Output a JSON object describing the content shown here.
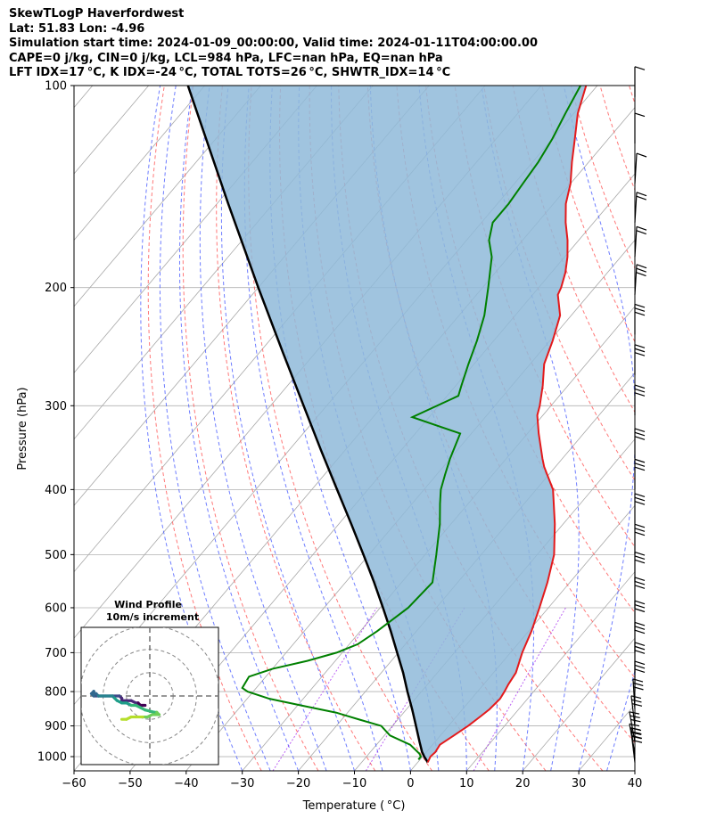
{
  "header": {
    "line1": "SkewTLogP Haverfordwest",
    "line2": "Lat: 51.83   Lon: -4.96",
    "line3": "Simulation start time: 2024-01-09_00:00:00, Valid time: 2024-01-11T04:00:00.00",
    "line4": "CAPE=0 j/kg, CIN=0 j/kg, LCL=984 hPa, LFC=nan hPa, EQ=nan hPa",
    "line5": "LFT IDX=17$^\\circ$C, K IDX=-24$^\\circ$C, TOTAL TOTS=26$^\\circ$C, SHWTR_IDX=14$^\\circ$C"
  },
  "header_display": {
    "line5": "LFT IDX=17 °C, K IDX=-24 °C, TOTAL TOTS=26 °C, SHWTR_IDX=14 °C"
  },
  "colors": {
    "temperature": "#e31a1c",
    "dewpoint": "#008000",
    "parcel": "#000000",
    "shade": "#8fbad9",
    "dry_adiabat": "#ff6060",
    "moist_adiabat": "#4a5cff",
    "mixing_ratio": "#a020f0",
    "isotherm": "#a8a8a8"
  },
  "chart_data": [
    {
      "type": "line",
      "subtype": "skew-t log-p",
      "title": "SkewTLogP Haverfordwest",
      "xlabel": "Temperature ($^\\circ$C)",
      "ylabel": "Pressure (hPa)",
      "xlabel_display": "Temperature ( °C)",
      "xlim": [
        -60,
        40
      ],
      "ylim": [
        1050,
        100
      ],
      "yscale": "log",
      "xticks": [
        -60,
        -50,
        -40,
        -30,
        -20,
        -10,
        0,
        10,
        20,
        30,
        40
      ],
      "xtick_labels": [
        "−60",
        "−50",
        "−40",
        "−30",
        "−20",
        "−10",
        "0",
        "10",
        "20",
        "30",
        "40"
      ],
      "yticks": [
        1000,
        900,
        800,
        700,
        600,
        500,
        400,
        300,
        200,
        100
      ],
      "ytick_labels": [
        "1000",
        "900",
        "800",
        "700",
        "600",
        "500",
        "400",
        "300",
        "200",
        "100"
      ],
      "grid": true,
      "series": [
        {
          "name": "Temperature",
          "p": [
            1020,
            1000,
            985,
            960,
            930,
            900,
            870,
            850,
            820,
            800,
            780,
            750,
            700,
            650,
            600,
            550,
            500,
            450,
            400,
            370,
            360,
            330,
            310,
            300,
            280,
            260,
            240,
            220,
            205,
            200,
            190,
            180,
            170,
            160,
            150,
            140,
            130,
            120,
            110,
            100
          ],
          "t": [
            1.8,
            1.4,
            1.6,
            1.3,
            2.4,
            3.5,
            4.3,
            4.8,
            5.1,
            4.8,
            4.4,
            4.0,
            2.1,
            0.5,
            -1.6,
            -4.0,
            -7.0,
            -11.5,
            -17.0,
            -22.0,
            -23.5,
            -28.0,
            -31.0,
            -32.0,
            -34.5,
            -37.5,
            -39.5,
            -42.0,
            -45.5,
            -46.0,
            -47.5,
            -49.5,
            -52.0,
            -55.0,
            -57.8,
            -60.0,
            -63.0,
            -66.0,
            -69.3,
            -72.0
          ]
        },
        {
          "name": "Dewpoint",
          "p": [
            1010,
            1000,
            990,
            960,
            930,
            900,
            880,
            860,
            840,
            820,
            800,
            790,
            760,
            740,
            720,
            700,
            680,
            650,
            600,
            550,
            500,
            450,
            420,
            400,
            380,
            360,
            330,
            312,
            290,
            280,
            260,
            240,
            220,
            200,
            180,
            170,
            160,
            150,
            140,
            130,
            120,
            110,
            100
          ],
          "t": [
            -0.3,
            -0.3,
            -1.0,
            -4.0,
            -9.0,
            -12.0,
            -17.0,
            -22.0,
            -29.0,
            -36.0,
            -41.0,
            -42.5,
            -43.0,
            -40.0,
            -35.0,
            -31.0,
            -28.5,
            -27.0,
            -25.0,
            -24.5,
            -28.0,
            -32.0,
            -35.0,
            -37.0,
            -38.5,
            -40.0,
            -42.0,
            -53.0,
            -48.0,
            -49.0,
            -51.0,
            -53.0,
            -55.5,
            -59.0,
            -63.0,
            -66.0,
            -68.0,
            -68.0,
            -68.5,
            -69.0,
            -70.0,
            -71.5,
            -73.0
          ]
        },
        {
          "name": "Parcel",
          "p": [
            1020,
            1000,
            984,
            950,
            900,
            850,
            800,
            750,
            700,
            650,
            600,
            550,
            500,
            450,
            400,
            350,
            300,
            250,
            200,
            150,
            100
          ],
          "t": [
            1.8,
            0.3,
            -0.8,
            -2.8,
            -5.8,
            -9.0,
            -12.5,
            -16.1,
            -20.2,
            -24.6,
            -29.5,
            -34.9,
            -41.0,
            -47.8,
            -55.5,
            -64.2,
            -74.1,
            -85.8,
            -100.0,
            -118.0,
            -143.0
          ]
        }
      ],
      "winds": [
        {
          "p": 1020,
          "u": 5,
          "v": -2
        },
        {
          "p": 1005,
          "u": 5,
          "v": -2
        },
        {
          "p": 990,
          "u": 5,
          "v": -3
        },
        {
          "p": 950,
          "u": 6,
          "v": -3
        },
        {
          "p": 900,
          "u": 6,
          "v": -2
        },
        {
          "p": 850,
          "u": 6,
          "v": -1
        },
        {
          "p": 800,
          "u": 6,
          "v": 0
        },
        {
          "p": 750,
          "u": 6,
          "v": 0
        },
        {
          "p": 700,
          "u": 6,
          "v": 0
        },
        {
          "p": 650,
          "u": 6,
          "v": 0
        },
        {
          "p": 600,
          "u": 6,
          "v": 0
        },
        {
          "p": 550,
          "u": 6,
          "v": 0
        },
        {
          "p": 500,
          "u": 6,
          "v": 0
        },
        {
          "p": 450,
          "u": 6,
          "v": 0
        },
        {
          "p": 400,
          "u": 6,
          "v": 0
        },
        {
          "p": 360,
          "u": 5,
          "v": 0
        },
        {
          "p": 310,
          "u": 5,
          "v": 0
        },
        {
          "p": 270,
          "u": 5,
          "v": 0
        },
        {
          "p": 235,
          "u": 5,
          "v": 0
        },
        {
          "p": 205,
          "u": 5,
          "v": 1
        },
        {
          "p": 180,
          "u": 4,
          "v": 1
        },
        {
          "p": 160,
          "u": 3,
          "v": 1
        },
        {
          "p": 140,
          "u": 2,
          "v": 1
        },
        {
          "p": 122,
          "u": 1,
          "v": 0
        },
        {
          "p": 104,
          "u": 1,
          "v": 0
        }
      ]
    },
    {
      "type": "line",
      "subtype": "hodograph",
      "title": "Wind Profile\n10m/s increment",
      "title_lines": [
        "Wind Profile",
        "10m/s increment"
      ],
      "rings_ms": [
        10,
        20,
        30
      ],
      "range_ms": [
        -25,
        25
      ],
      "u": [
        -12,
        -10,
        -8,
        -6,
        -3,
        -1,
        1,
        3,
        4,
        3,
        2,
        -2,
        -4,
        -6,
        -8,
        -10,
        -12,
        -14,
        -15,
        -16,
        -17,
        -19,
        -21,
        -22,
        -23,
        -24,
        -24,
        -25,
        -24,
        -22,
        -20,
        -16,
        -13,
        -12,
        -12,
        -10,
        -8,
        -6,
        -5,
        -5,
        -4,
        -3,
        -2
      ],
      "v": [
        -10,
        -10,
        -9,
        -9,
        -9,
        -9,
        -8,
        -8,
        -8,
        -7,
        -7,
        -6,
        -5,
        -4,
        -4,
        -3,
        -3,
        -2,
        -1,
        0,
        0,
        0,
        0,
        0,
        1,
        1,
        2,
        1,
        0,
        0,
        0,
        0,
        0,
        -1,
        -2,
        -2,
        -2,
        -3,
        -3,
        -3,
        -4,
        -4,
        -4
      ]
    }
  ]
}
